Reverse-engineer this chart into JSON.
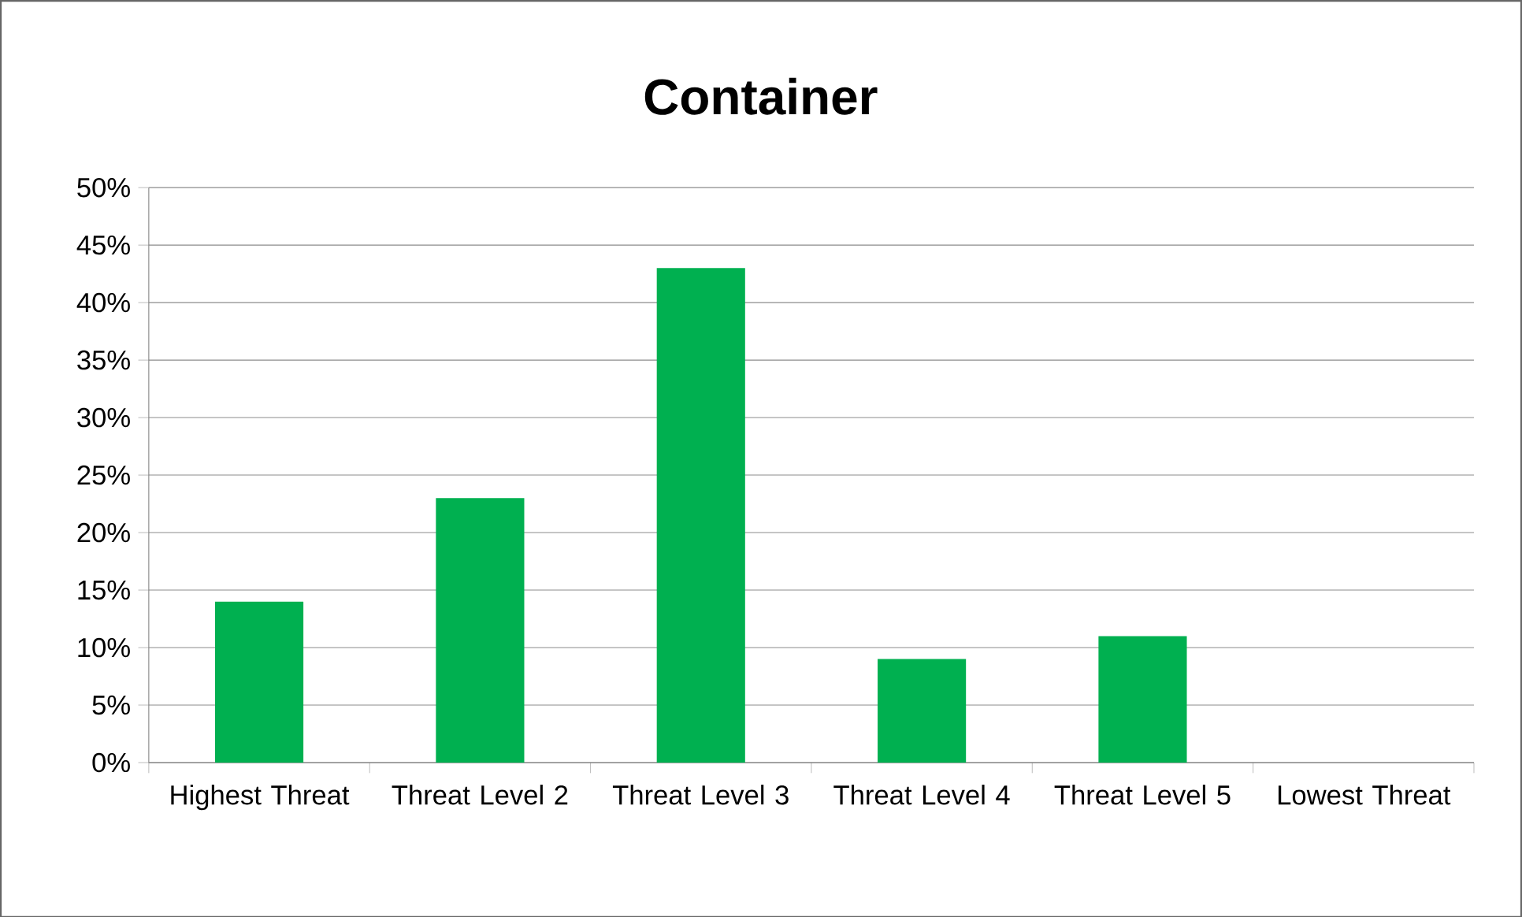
{
  "chart_data": {
    "type": "bar",
    "title": "Container",
    "categories": [
      "Highest Threat",
      "Threat Level 2",
      "Threat Level 3",
      "Threat Level 4",
      "Threat Level 5",
      "Lowest Threat"
    ],
    "values": [
      14,
      23,
      43,
      9,
      11,
      0
    ],
    "color": "#00b050",
    "ylim": [
      0,
      50
    ],
    "yticks": [
      {
        "value": 0,
        "label": "0%"
      },
      {
        "value": 5,
        "label": "5%"
      },
      {
        "value": 10,
        "label": "10%"
      },
      {
        "value": 15,
        "label": "15%"
      },
      {
        "value": 20,
        "label": "20%"
      },
      {
        "value": 25,
        "label": "25%"
      },
      {
        "value": 30,
        "label": "30%"
      },
      {
        "value": 35,
        "label": "35%"
      },
      {
        "value": 40,
        "label": "40%"
      },
      {
        "value": 45,
        "label": "45%"
      },
      {
        "value": 50,
        "label": "50%"
      }
    ],
    "grid": "y"
  }
}
